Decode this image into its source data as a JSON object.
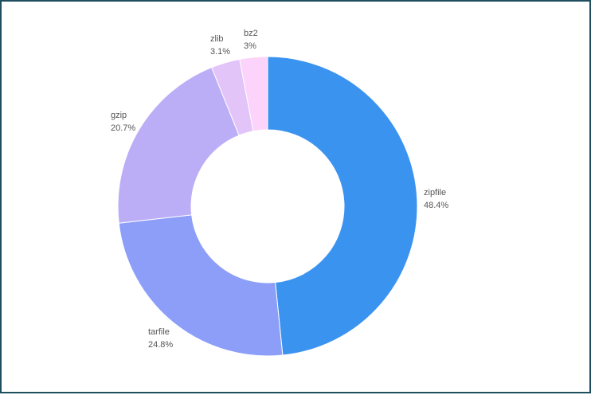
{
  "chart_data": {
    "type": "pie",
    "donut": true,
    "categories": [
      "zipfile",
      "tarfile",
      "gzip",
      "zlib",
      "bz2"
    ],
    "values": [
      48.4,
      24.8,
      20.7,
      3.1,
      3.0
    ],
    "value_labels": [
      "48.4%",
      "24.8%",
      "20.7%",
      "3.1%",
      "3%"
    ],
    "colors": [
      "#3b93f0",
      "#8c9ef8",
      "#bcadf7",
      "#e3c4f9",
      "#fcd3fb"
    ],
    "title": "",
    "legend": "none"
  }
}
